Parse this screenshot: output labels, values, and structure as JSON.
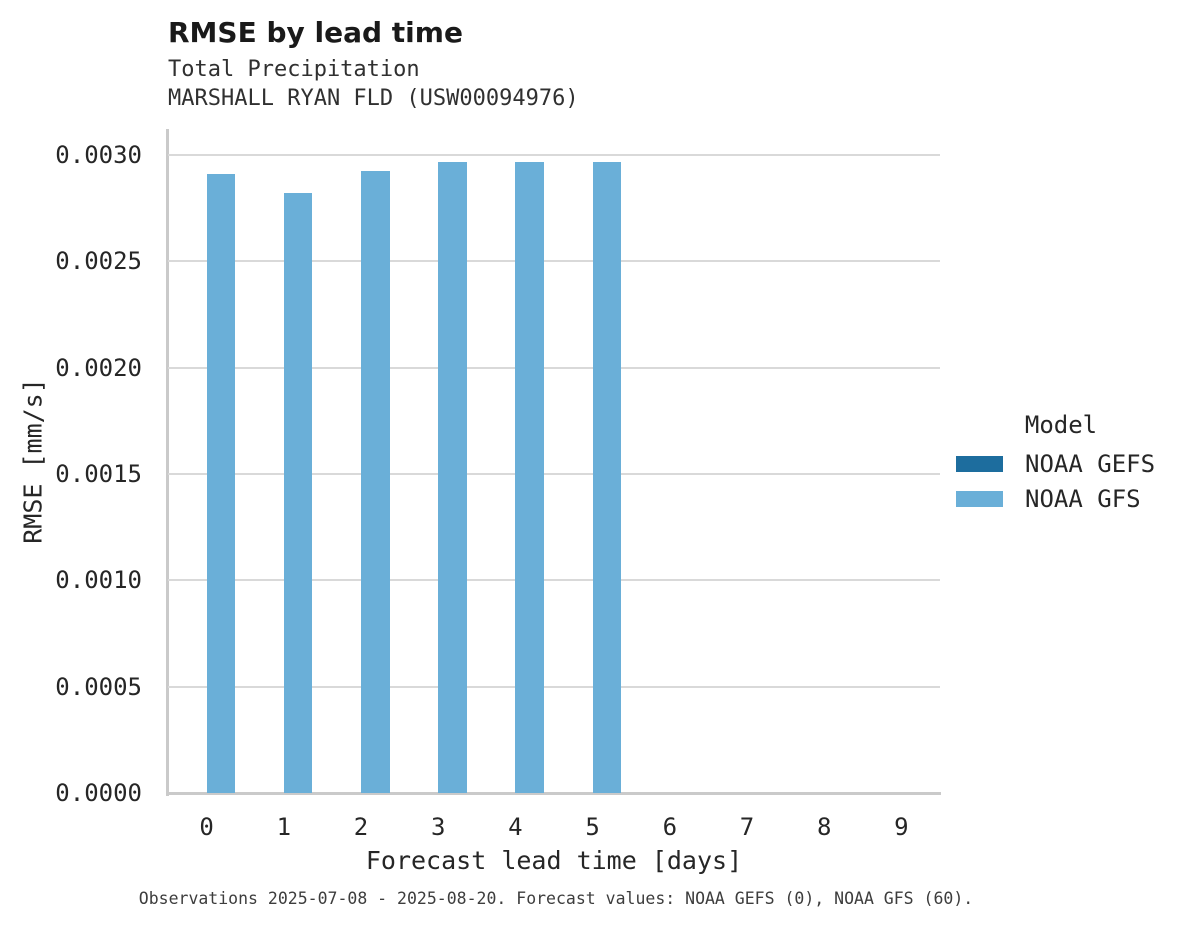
{
  "chart_data": {
    "type": "bar",
    "title": "RMSE by lead time",
    "subtitle": [
      "Total Precipitation",
      "MARSHALL RYAN FLD (USW00094976)"
    ],
    "xlabel": "Forecast lead time [days]",
    "ylabel": "RMSE [mm/s]",
    "categories": [
      "0",
      "1",
      "2",
      "3",
      "4",
      "5",
      "6",
      "7",
      "8",
      "9"
    ],
    "series": [
      {
        "name": "NOAA GEFS",
        "color": "#1d6d9e",
        "values": [
          0,
          0,
          0,
          0,
          0,
          0,
          0,
          0,
          0,
          0
        ]
      },
      {
        "name": "NOAA GFS",
        "color": "#6aafd8",
        "values": [
          0.00291,
          0.00282,
          0.002925,
          0.002965,
          0.002965,
          0.002965,
          null,
          null,
          null,
          null
        ]
      }
    ],
    "ylim": [
      0,
      0.003122
    ],
    "yticks": [
      0,
      0.0005,
      0.001,
      0.0015,
      0.002,
      0.0025,
      0.003
    ],
    "ytick_labels": [
      "0.0000",
      "0.0005",
      "0.0010",
      "0.0015",
      "0.0020",
      "0.0025",
      "0.0030"
    ],
    "grid": true,
    "legend_title": "Model",
    "legend_position": "center right"
  },
  "footer": {
    "caption": "Observations 2025-07-08 - 2025-08-20. Forecast values: NOAA GEFS (0), NOAA GFS (60)."
  },
  "colors": {
    "grid": "#d9d9d9",
    "spine": "#cacaca",
    "background": "#ffffff"
  }
}
